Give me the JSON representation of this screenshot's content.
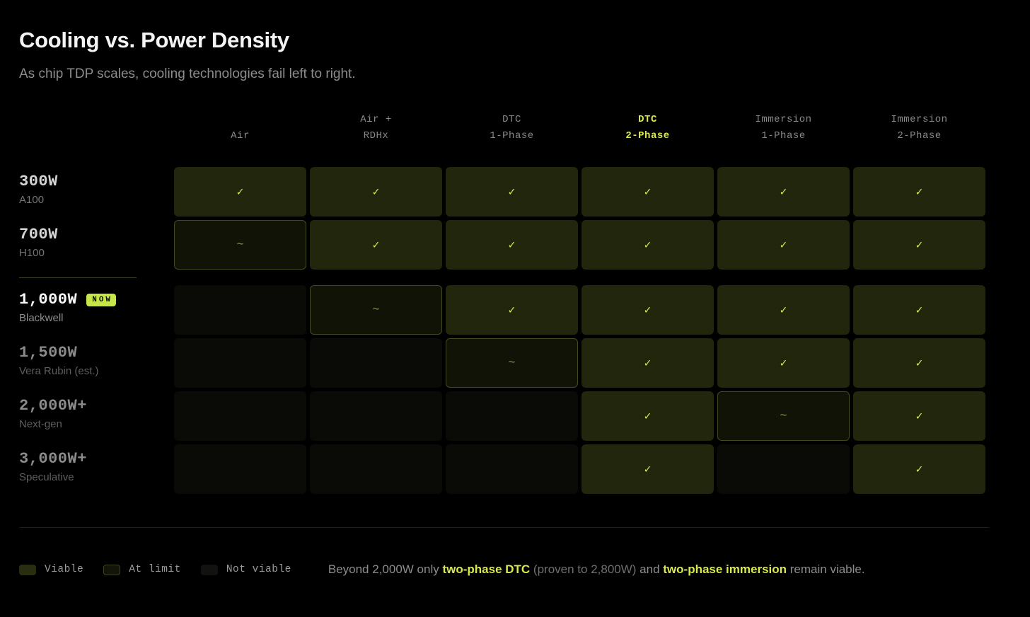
{
  "title": "Cooling vs. Power Density",
  "subtitle": "As chip TDP scales, cooling technologies fail left to right.",
  "colors": {
    "background": "#000000",
    "accent": "#d9e94e",
    "badge_bg": "#c6e64a",
    "check": "#d9ef58",
    "viable_bg": "#21260c",
    "limit_bg": "#121307",
    "limit_border": "#45481f",
    "not_viable_bg": "#0a0b07",
    "tilde": "#9a9150"
  },
  "matrix": {
    "columns": [
      {
        "line1": "",
        "line2": "Air",
        "highlight": false
      },
      {
        "line1": "Air +",
        "line2": "RDHx",
        "highlight": false
      },
      {
        "line1": "DTC",
        "line2": "1-Phase",
        "highlight": false
      },
      {
        "line1": "DTC",
        "line2": "2-Phase",
        "highlight": true
      },
      {
        "line1": "Immersion",
        "line2": "1-Phase",
        "highlight": false
      },
      {
        "line1": "Immersion",
        "line2": "2-Phase",
        "highlight": false
      }
    ],
    "rows": [
      {
        "power": "300W",
        "chip": "A100",
        "badge": null,
        "emphasis": "normal",
        "separator_after": false,
        "cells": [
          "viable",
          "viable",
          "viable",
          "viable",
          "viable",
          "viable"
        ]
      },
      {
        "power": "700W",
        "chip": "H100",
        "badge": null,
        "emphasis": "normal",
        "separator_after": true,
        "cells": [
          "limit",
          "viable",
          "viable",
          "viable",
          "viable",
          "viable"
        ]
      },
      {
        "power": "1,000W",
        "chip": "Blackwell",
        "badge": "NOW",
        "emphasis": "high",
        "separator_after": false,
        "cells": [
          "none",
          "limit",
          "viable",
          "viable",
          "viable",
          "viable"
        ]
      },
      {
        "power": "1,500W",
        "chip": "Vera Rubin (est.)",
        "badge": null,
        "emphasis": "dim",
        "separator_after": false,
        "cells": [
          "none",
          "none",
          "limit",
          "viable",
          "viable",
          "viable"
        ]
      },
      {
        "power": "2,000W+",
        "chip": "Next-gen",
        "badge": null,
        "emphasis": "dim",
        "separator_after": false,
        "cells": [
          "none",
          "none",
          "none",
          "viable",
          "limit",
          "viable"
        ]
      },
      {
        "power": "3,000W+",
        "chip": "Speculative",
        "badge": null,
        "emphasis": "dim",
        "separator_after": false,
        "cells": [
          "none",
          "none",
          "none",
          "viable",
          "none",
          "viable"
        ]
      }
    ],
    "symbols": {
      "viable": "✓",
      "limit": "~",
      "none": ""
    }
  },
  "legend": [
    {
      "label": "Viable",
      "type": "viable"
    },
    {
      "label": "At limit",
      "type": "limit"
    },
    {
      "label": "Not viable",
      "type": "none"
    }
  ],
  "footnote": {
    "segments": [
      {
        "text": "Beyond 2,000W only ",
        "style": "muted"
      },
      {
        "text": "two-phase DTC",
        "style": "accent"
      },
      {
        "text": " (proven to 2,800W)",
        "style": "faint"
      },
      {
        "text": " and ",
        "style": "muted"
      },
      {
        "text": "two-phase immersion",
        "style": "accent"
      },
      {
        "text": " remain viable.",
        "style": "muted"
      }
    ]
  },
  "chart_data": {
    "type": "heatmap",
    "title": "Cooling vs. Power Density",
    "subtitle": "As chip TDP scales, cooling technologies fail left to right.",
    "x_categories": [
      "Air",
      "Air + RDHx",
      "DTC 1-Phase",
      "DTC 2-Phase",
      "Immersion 1-Phase",
      "Immersion 2-Phase"
    ],
    "y_categories": [
      "300W (A100)",
      "700W (H100)",
      "1,000W (Blackwell)",
      "1,500W (Vera Rubin est.)",
      "2,000W+ (Next-gen)",
      "3,000W+ (Speculative)"
    ],
    "values": [
      [
        "viable",
        "viable",
        "viable",
        "viable",
        "viable",
        "viable"
      ],
      [
        "at_limit",
        "viable",
        "viable",
        "viable",
        "viable",
        "viable"
      ],
      [
        "not_viable",
        "at_limit",
        "viable",
        "viable",
        "viable",
        "viable"
      ],
      [
        "not_viable",
        "not_viable",
        "at_limit",
        "viable",
        "viable",
        "viable"
      ],
      [
        "not_viable",
        "not_viable",
        "not_viable",
        "viable",
        "at_limit",
        "viable"
      ],
      [
        "not_viable",
        "not_viable",
        "not_viable",
        "viable",
        "not_viable",
        "viable"
      ]
    ],
    "legend": [
      "Viable",
      "At limit",
      "Not viable"
    ],
    "legend_position": "bottom-left",
    "highlighted_column": "DTC 2-Phase",
    "highlighted_row": "1,000W (Blackwell)",
    "annotation": "Beyond 2,000W only two-phase DTC (proven to 2,800W) and two-phase immersion remain viable."
  }
}
